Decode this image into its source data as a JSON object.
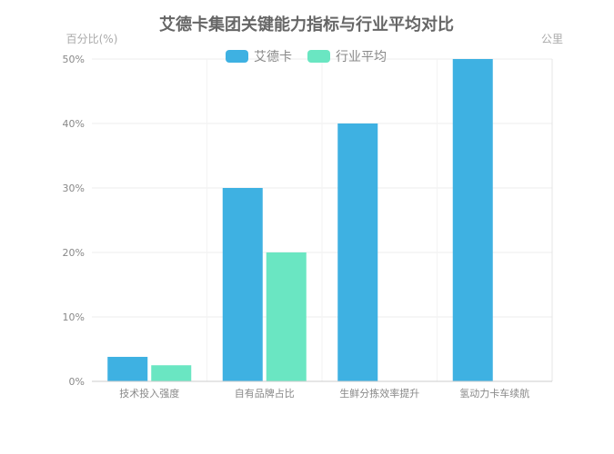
{
  "chart_data": {
    "type": "bar",
    "title": "艾德卡集团关键能力指标与行业平均对比",
    "ylabel_left": "百分比(%)",
    "ylabel_right": "公里",
    "xlabel": "",
    "categories": [
      "技术投入强度",
      "自有品牌占比",
      "生鲜分拣效率提升",
      "氢动力卡车续航"
    ],
    "y_ticks": [
      "0%",
      "10%",
      "20%",
      "30%",
      "40%",
      "50%"
    ],
    "ylim": [
      0,
      50
    ],
    "grid": true,
    "legend_position": "top",
    "series": [
      {
        "name": "艾德卡",
        "color": "#3eb1e2",
        "values": [
          3.8,
          30,
          40,
          50
        ]
      },
      {
        "name": "行业平均",
        "color": "#6ae6c2",
        "values": [
          2.5,
          20,
          null,
          null
        ]
      }
    ]
  }
}
